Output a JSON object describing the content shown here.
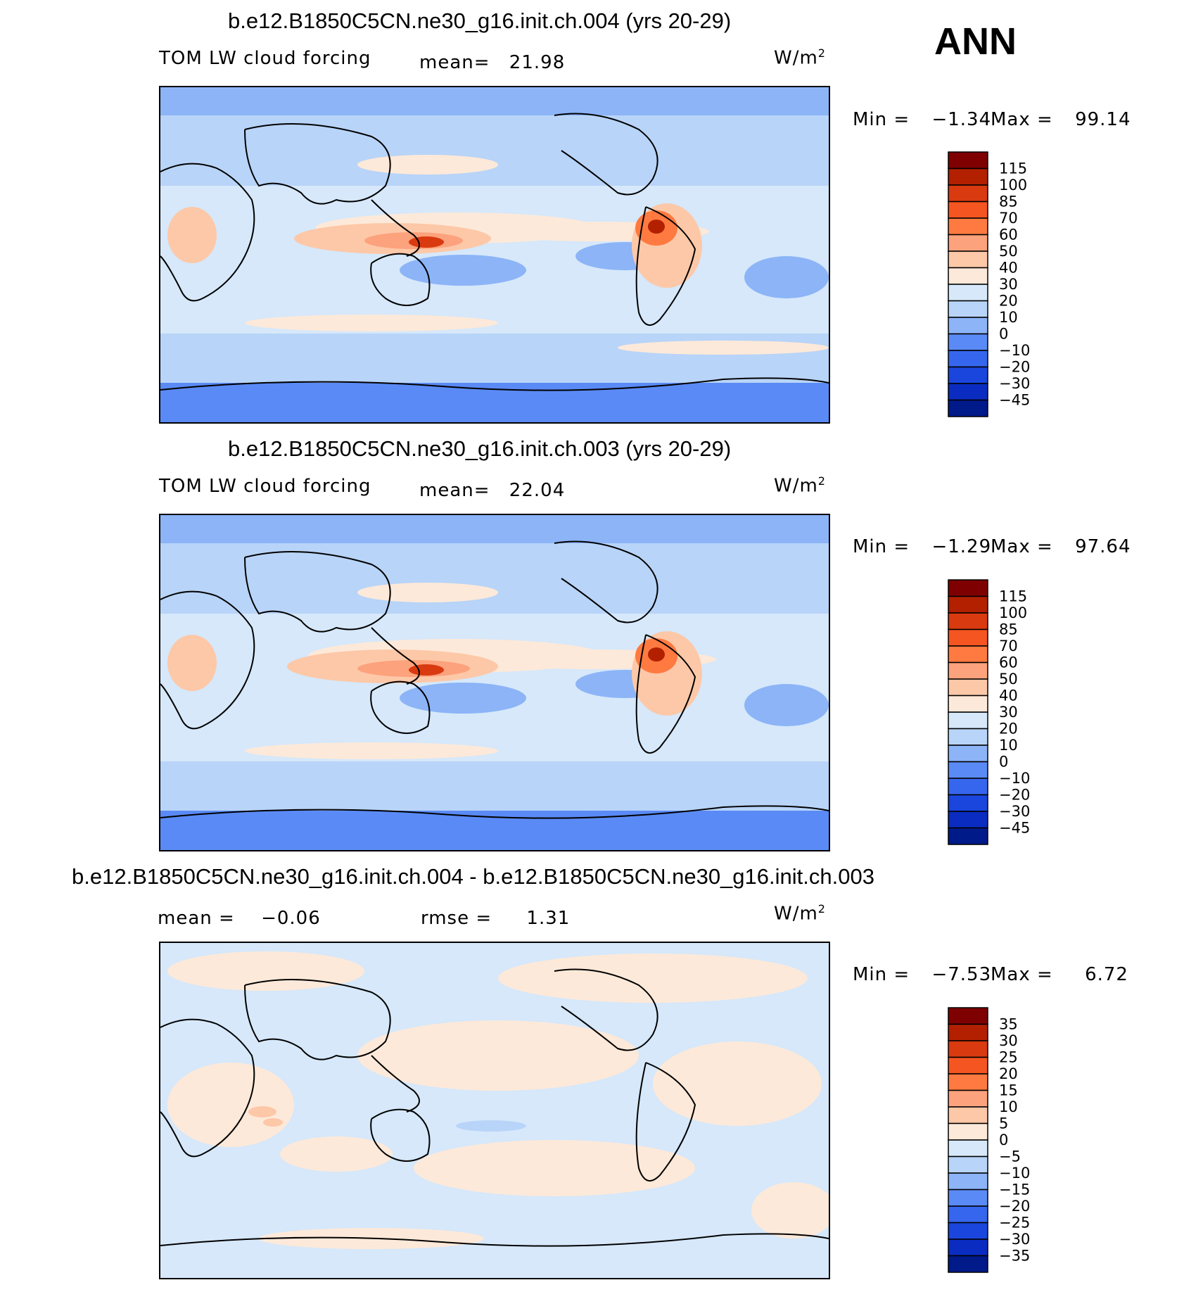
{
  "page_label": "ANN",
  "chart_data": [
    {
      "type": "heatmap",
      "title": "b.e12.B1850C5CN.ne30_g16.init.ch.004 (yrs 20-29)",
      "variable": "TOM LW cloud forcing",
      "stat1_label": "mean=",
      "stat1_value": "21.98",
      "units": "W/m",
      "units_exp": "2",
      "min_label": "Min =",
      "min_value": "−1.34",
      "max_label": "Max =",
      "max_value": "99.14",
      "colorbar_levels": [
        "115",
        "100",
        "85",
        "70",
        "60",
        "50",
        "40",
        "30",
        "20",
        "10",
        "0",
        "−10",
        "−20",
        "−30",
        "−45"
      ],
      "colorbar_colors": [
        "#7f0000",
        "#b22000",
        "#d93a10",
        "#f55520",
        "#ff7a40",
        "#fca27c",
        "#fdc8a8",
        "#fde9d9",
        "#d6e8fa",
        "#b8d4f8",
        "#8cb4f7",
        "#5a8af5",
        "#3666ee",
        "#1a46dd",
        "#0a2cc0",
        "#001a8a"
      ]
    },
    {
      "type": "heatmap",
      "title": "b.e12.B1850C5CN.ne30_g16.init.ch.003 (yrs 20-29)",
      "variable": "TOM LW cloud forcing",
      "stat1_label": "mean=",
      "stat1_value": "22.04",
      "units": "W/m",
      "units_exp": "2",
      "min_label": "Min =",
      "min_value": "−1.29",
      "max_label": "Max =",
      "max_value": "97.64",
      "colorbar_levels": [
        "115",
        "100",
        "85",
        "70",
        "60",
        "50",
        "40",
        "30",
        "20",
        "10",
        "0",
        "−10",
        "−20",
        "−30",
        "−45"
      ],
      "colorbar_colors": [
        "#7f0000",
        "#b22000",
        "#d93a10",
        "#f55520",
        "#ff7a40",
        "#fca27c",
        "#fdc8a8",
        "#fde9d9",
        "#d6e8fa",
        "#b8d4f8",
        "#8cb4f7",
        "#5a8af5",
        "#3666ee",
        "#1a46dd",
        "#0a2cc0",
        "#001a8a"
      ]
    },
    {
      "type": "heatmap",
      "title": "b.e12.B1850C5CN.ne30_g16.init.ch.004 - b.e12.B1850C5CN.ne30_g16.init.ch.003",
      "variable": "",
      "stat1_label": "mean =",
      "stat1_value": "−0.06",
      "stat2_label": "rmse =",
      "stat2_value": "1.31",
      "units": "W/m",
      "units_exp": "2",
      "min_label": "Min =",
      "min_value": "−7.53",
      "max_label": "Max =",
      "max_value": "6.72",
      "colorbar_levels": [
        "35",
        "30",
        "25",
        "20",
        "15",
        "10",
        "5",
        "0",
        "−5",
        "−10",
        "−15",
        "−20",
        "−25",
        "−30",
        "−35"
      ],
      "colorbar_colors": [
        "#7f0000",
        "#b22000",
        "#d93a10",
        "#f55520",
        "#ff7a40",
        "#fca27c",
        "#fdc8a8",
        "#fde9d9",
        "#d6e8fa",
        "#b8d4f8",
        "#8cb4f7",
        "#5a8af5",
        "#3666ee",
        "#1a46dd",
        "#0a2cc0",
        "#001a8a"
      ]
    }
  ]
}
